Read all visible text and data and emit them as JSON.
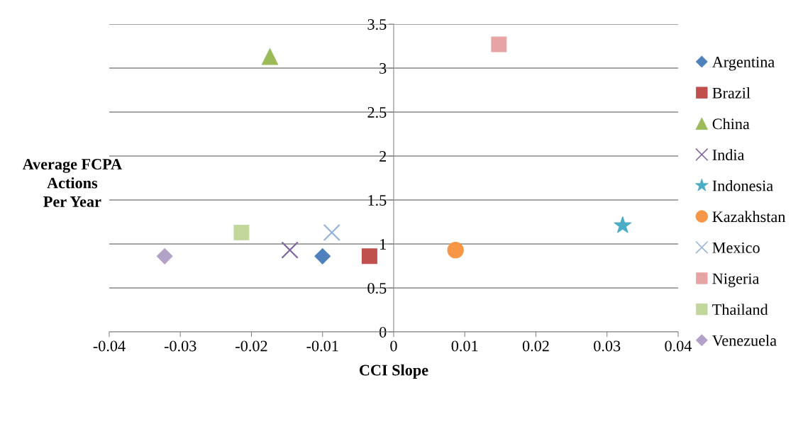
{
  "chart_data": {
    "type": "scatter",
    "xlabel": "CCI Slope",
    "ylabel": "Average FCPA\nActions\nPer Year",
    "xlim": [
      -0.04,
      0.04
    ],
    "xticks": [
      -0.04,
      -0.03,
      -0.02,
      -0.01,
      0,
      0.01,
      0.02,
      0.03,
      0.04
    ],
    "ylim": [
      0,
      3.5
    ],
    "yticks": [
      0,
      0.5,
      1,
      1.5,
      2,
      2.5,
      3,
      3.5
    ],
    "grid": "y",
    "legend": "right",
    "series": [
      {
        "name": "Argentina",
        "color": "#4f81bd",
        "marker": "diamond",
        "x": [
          -0.01
        ],
        "values": [
          0.86
        ]
      },
      {
        "name": "Brazil",
        "color": "#c0504d",
        "marker": "square",
        "x": [
          -0.0034
        ],
        "values": [
          0.86
        ]
      },
      {
        "name": "China",
        "color": "#9bbb59",
        "marker": "triangle",
        "x": [
          -0.0174
        ],
        "values": [
          3.13
        ]
      },
      {
        "name": "India",
        "color": "#8064a2",
        "marker": "cross",
        "x": [
          -0.0146
        ],
        "values": [
          0.93
        ]
      },
      {
        "name": "Indonesia",
        "color": "#4bacc6",
        "marker": "star",
        "x": [
          0.0322
        ],
        "values": [
          1.21
        ]
      },
      {
        "name": "Kazakhstan",
        "color": "#f79646",
        "marker": "circle",
        "x": [
          0.0087
        ],
        "values": [
          0.93
        ]
      },
      {
        "name": "Mexico",
        "color": "#95b3d7",
        "marker": "cross",
        "x": [
          -0.0087
        ],
        "values": [
          1.13
        ]
      },
      {
        "name": "Nigeria",
        "color": "#e6a5a4",
        "marker": "square",
        "x": [
          0.0148
        ],
        "values": [
          3.27
        ]
      },
      {
        "name": "Thailand",
        "color": "#c3d69b",
        "marker": "square",
        "x": [
          -0.0214
        ],
        "values": [
          1.13
        ]
      },
      {
        "name": "Venezuela",
        "color": "#b3a2c7",
        "marker": "diamond",
        "x": [
          -0.0322
        ],
        "values": [
          0.86
        ]
      }
    ]
  }
}
